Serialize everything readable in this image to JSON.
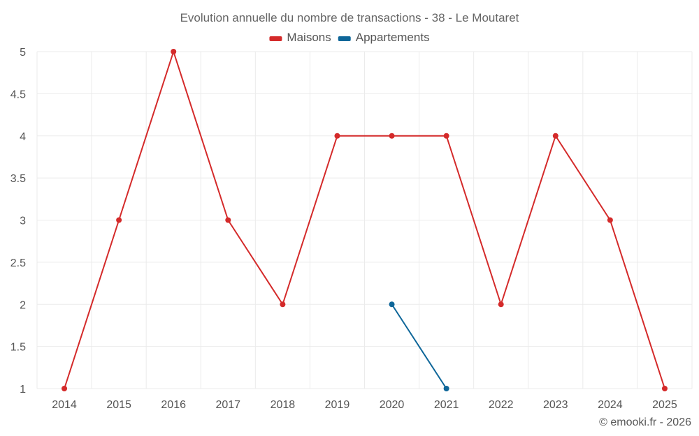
{
  "chart_data": {
    "type": "line",
    "title": "Evolution annuelle du nombre de transactions - 38 - Le Moutaret",
    "x": [
      "2014",
      "2015",
      "2016",
      "2017",
      "2018",
      "2019",
      "2020",
      "2021",
      "2022",
      "2023",
      "2024",
      "2025"
    ],
    "series": [
      {
        "name": "Maisons",
        "color": "#d42a2a",
        "values": [
          1,
          3,
          5,
          3,
          2,
          4,
          4,
          4,
          2,
          4,
          3,
          1
        ]
      },
      {
        "name": "Appartements",
        "color": "#0e6699",
        "values": [
          null,
          null,
          null,
          null,
          null,
          null,
          2,
          1,
          null,
          null,
          null,
          null
        ]
      }
    ],
    "ylim": [
      1,
      5
    ],
    "yticks": [
      "1",
      "1.5",
      "2",
      "2.5",
      "3",
      "3.5",
      "4",
      "4.5",
      "5"
    ],
    "xlabel": "",
    "ylabel": "",
    "grid": true,
    "legend_position": "top-center"
  },
  "credit": "© emooki.fr - 2026"
}
